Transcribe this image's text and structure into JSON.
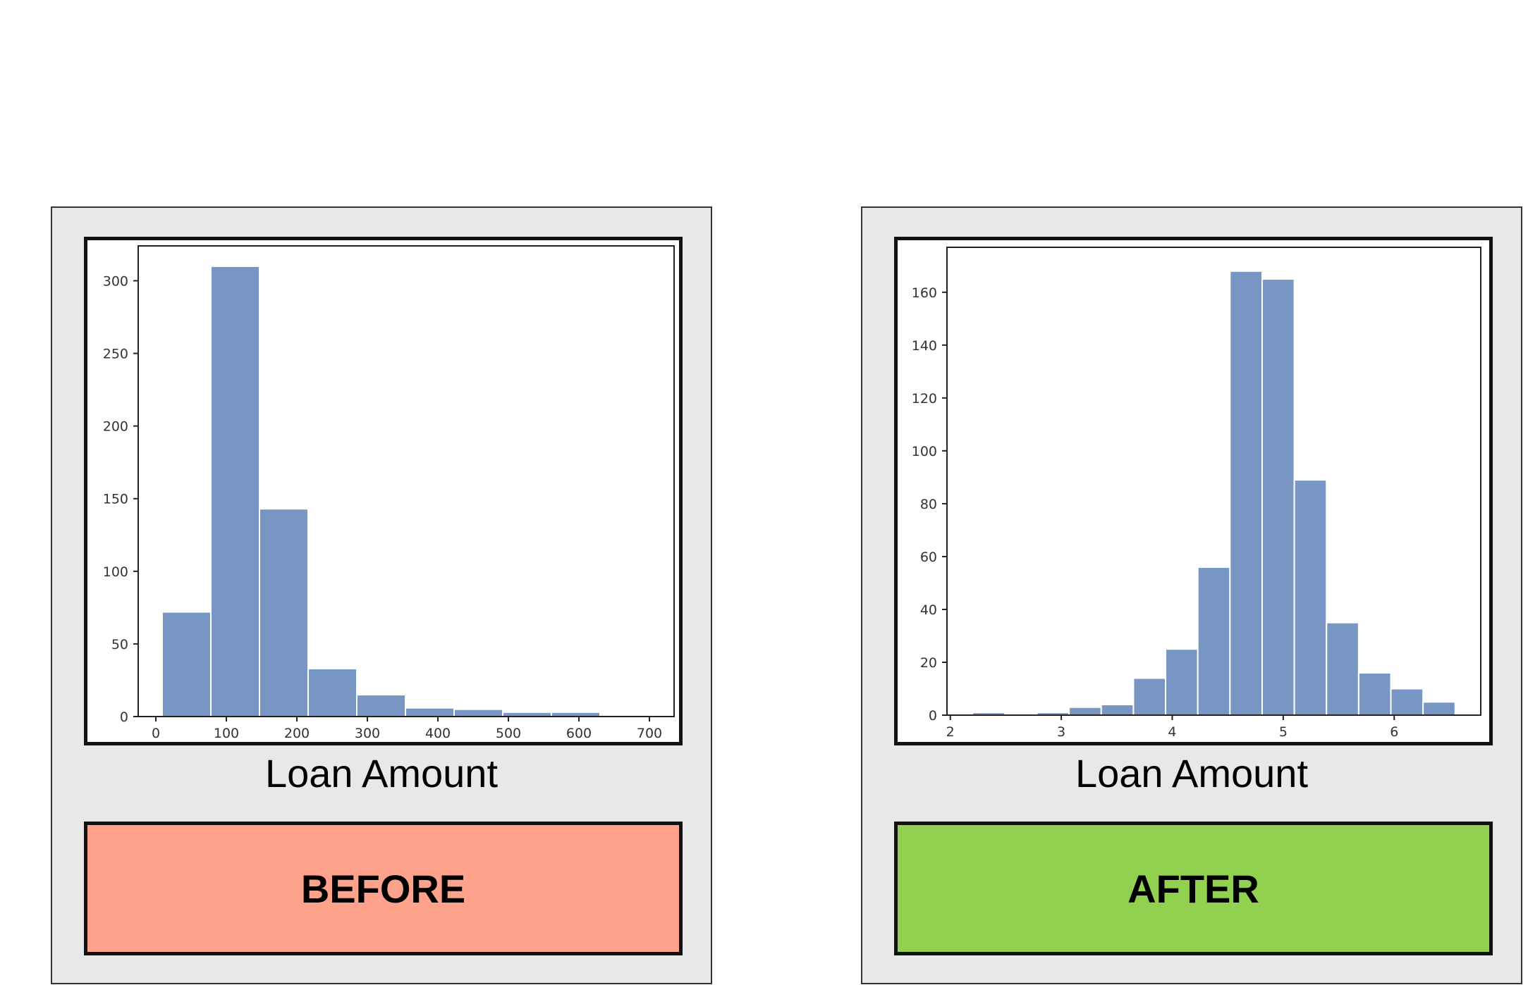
{
  "colors": {
    "bar_fill": "#7896c4",
    "bar_edge": "#ffffff",
    "before_box": "#fea28c",
    "after_box": "#92d050",
    "panel_bg": "#e8e8e8"
  },
  "panels": {
    "before": {
      "caption": "Loan Amount",
      "label": "BEFORE"
    },
    "after": {
      "caption": "Loan Amount",
      "label": "AFTER"
    }
  },
  "chart_data": [
    {
      "type": "bar",
      "title": "",
      "xlabel": "",
      "ylabel": "",
      "bins": [
        {
          "x0": 9,
          "x1": 78,
          "value": 72
        },
        {
          "x0": 78,
          "x1": 147,
          "value": 310
        },
        {
          "x0": 147,
          "x1": 216,
          "value": 143
        },
        {
          "x0": 216,
          "x1": 285,
          "value": 33
        },
        {
          "x0": 285,
          "x1": 354,
          "value": 15
        },
        {
          "x0": 354,
          "x1": 423,
          "value": 6
        },
        {
          "x0": 423,
          "x1": 492,
          "value": 5
        },
        {
          "x0": 492,
          "x1": 561,
          "value": 3
        },
        {
          "x0": 561,
          "x1": 630,
          "value": 3
        },
        {
          "x0": 630,
          "x1": 700,
          "value": 1
        }
      ],
      "xlim": [
        -25,
        735
      ],
      "ylim": [
        0,
        324
      ],
      "xticks": [
        0,
        100,
        200,
        300,
        400,
        500,
        600,
        700
      ],
      "xtick_labels": [
        "0",
        "100",
        "200",
        "300",
        "400",
        "500",
        "600",
        "700"
      ],
      "yticks": [
        0,
        50,
        100,
        150,
        200,
        250,
        300
      ],
      "ytick_labels": [
        "0",
        "50",
        "100",
        "150",
        "200",
        "250",
        "300"
      ],
      "grid": false,
      "legend": "none"
    },
    {
      "type": "bar",
      "title": "",
      "xlabel": "",
      "ylabel": "",
      "bins": [
        {
          "x0": 2.2,
          "x1": 2.49,
          "value": 1
        },
        {
          "x0": 2.49,
          "x1": 2.78,
          "value": 0
        },
        {
          "x0": 2.78,
          "x1": 3.07,
          "value": 1
        },
        {
          "x0": 3.07,
          "x1": 3.36,
          "value": 3
        },
        {
          "x0": 3.36,
          "x1": 3.65,
          "value": 4
        },
        {
          "x0": 3.65,
          "x1": 3.94,
          "value": 14
        },
        {
          "x0": 3.94,
          "x1": 4.23,
          "value": 25
        },
        {
          "x0": 4.23,
          "x1": 4.52,
          "value": 56
        },
        {
          "x0": 4.52,
          "x1": 4.81,
          "value": 168
        },
        {
          "x0": 4.81,
          "x1": 5.1,
          "value": 165
        },
        {
          "x0": 5.1,
          "x1": 5.39,
          "value": 89
        },
        {
          "x0": 5.39,
          "x1": 5.68,
          "value": 35
        },
        {
          "x0": 5.68,
          "x1": 5.97,
          "value": 16
        },
        {
          "x0": 5.97,
          "x1": 6.26,
          "value": 10
        },
        {
          "x0": 6.26,
          "x1": 6.55,
          "value": 5
        }
      ],
      "xlim": [
        1.97,
        6.78
      ],
      "ylim": [
        0,
        177
      ],
      "xticks": [
        2,
        3,
        4,
        5,
        6
      ],
      "xtick_labels": [
        "2",
        "3",
        "4",
        "5",
        "6"
      ],
      "yticks": [
        0,
        20,
        40,
        60,
        80,
        100,
        120,
        140,
        160
      ],
      "ytick_labels": [
        "0",
        "20",
        "40",
        "60",
        "80",
        "100",
        "120",
        "140",
        "160"
      ],
      "grid": false,
      "legend": "none"
    }
  ]
}
